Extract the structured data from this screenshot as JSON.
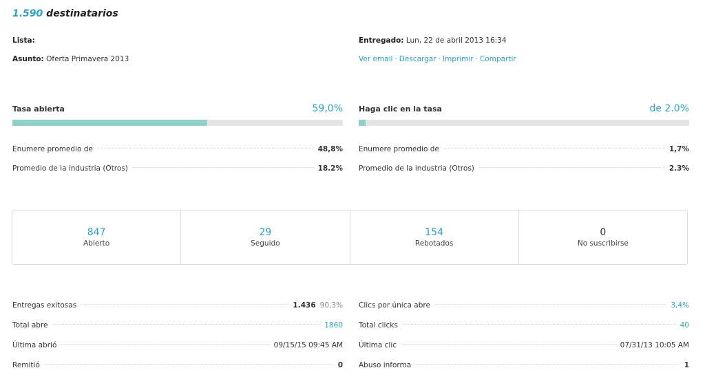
{
  "header": {
    "count": "1.590",
    "suffix": "destinatarios"
  },
  "meta": {
    "lista_label": "Lista:",
    "asunto_label": "Asunto:",
    "asunto_value": "Oferta Primavera 2013",
    "entregado_label": "Entregado:",
    "entregado_value": "Lun, 22 de abril 2013 16:34",
    "links": {
      "ver": "Ver email",
      "descargar": "Descargar",
      "imprimir": "Imprimir",
      "compartir": "Compartir",
      "sep": "·"
    }
  },
  "open_rate": {
    "title": "Tasa abierta",
    "value": "59,0%",
    "fraction": 0.59,
    "rows": [
      {
        "label": "Enumere promedio de",
        "value": "48,8%"
      },
      {
        "label": "Promedio de la industria (Otros)",
        "value": "18.2%"
      }
    ]
  },
  "click_rate": {
    "title": "Haga clic en la tasa",
    "value": "de 2.0%",
    "fraction": 0.02,
    "rows": [
      {
        "label": "Enumere promedio de",
        "value": "1,7%"
      },
      {
        "label": "Promedio de la industria (Otros)",
        "value": "2.3%"
      }
    ]
  },
  "stats": [
    {
      "number": "847",
      "label": "Abierto"
    },
    {
      "number": "29",
      "label": "Seguido"
    },
    {
      "number": "154",
      "label": "Rebotados"
    },
    {
      "number": "0",
      "label": "No suscribirse"
    }
  ],
  "details_left": [
    {
      "label": "Entregas exitosas",
      "value": "1.436",
      "sub": "90,3%"
    },
    {
      "label": "Total abre",
      "value": "1860"
    },
    {
      "label": "Última abrió",
      "value": "09/15/15 09:45 AM"
    },
    {
      "label": "Remitió",
      "value": "0"
    }
  ],
  "details_right": [
    {
      "label": "Clics por única abre",
      "value": "3,4%"
    },
    {
      "label": "Total clicks",
      "value": "40"
    },
    {
      "label": "Última clic",
      "value": "07/31/13 10:05 AM"
    },
    {
      "label": "Abuso informa",
      "value": "1"
    }
  ],
  "colors": {
    "accent": "#2aa3c4",
    "bar_fill": "#8fd1c9",
    "bar_track": "#e5e5e5"
  }
}
